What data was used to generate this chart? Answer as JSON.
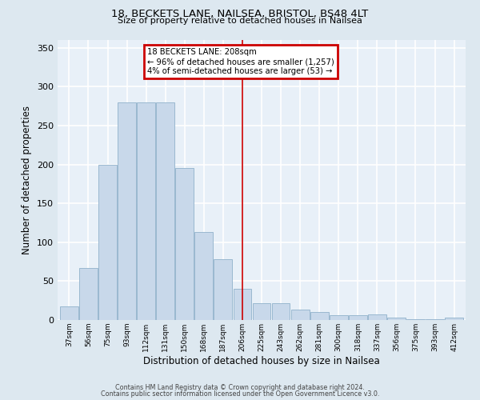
{
  "title1": "18, BECKETS LANE, NAILSEA, BRISTOL, BS48 4LT",
  "title2": "Size of property relative to detached houses in Nailsea",
  "xlabel": "Distribution of detached houses by size in Nailsea",
  "ylabel": "Number of detached properties",
  "categories": [
    "37sqm",
    "56sqm",
    "75sqm",
    "93sqm",
    "112sqm",
    "131sqm",
    "150sqm",
    "168sqm",
    "187sqm",
    "206sqm",
    "225sqm",
    "243sqm",
    "262sqm",
    "281sqm",
    "300sqm",
    "318sqm",
    "337sqm",
    "356sqm",
    "375sqm",
    "393sqm",
    "412sqm"
  ],
  "values": [
    18,
    67,
    200,
    280,
    280,
    280,
    195,
    113,
    78,
    40,
    22,
    22,
    13,
    10,
    6,
    6,
    7,
    3,
    1,
    1,
    3
  ],
  "bar_color": "#c8d8ea",
  "bar_edge_color": "#9ab8d0",
  "property_line_index": 9,
  "annotation_title": "18 BECKETS LANE: 208sqm",
  "annotation_line1": "← 96% of detached houses are smaller (1,257)",
  "annotation_line2": "4% of semi-detached houses are larger (53) →",
  "annotation_box_edgecolor": "#cc0000",
  "fig_background_color": "#dde8f0",
  "plot_background_color": "#e8f0f8",
  "grid_color": "#ffffff",
  "vline_color": "#cc0000",
  "ylim": [
    0,
    360
  ],
  "yticks": [
    0,
    50,
    100,
    150,
    200,
    250,
    300,
    350
  ],
  "footer1": "Contains HM Land Registry data © Crown copyright and database right 2024.",
  "footer2": "Contains public sector information licensed under the Open Government Licence v3.0."
}
